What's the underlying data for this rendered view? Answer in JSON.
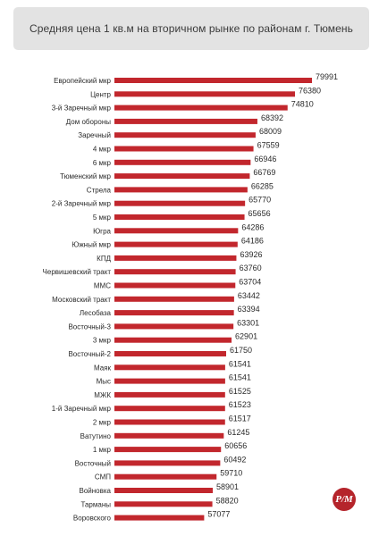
{
  "chart_data": {
    "type": "bar",
    "orientation": "horizontal",
    "title": "Средняя цена 1 кв.м на вторичном рынке по районам г. Тюмень",
    "bar_color": "#c2272d",
    "categories": [
      "Европейский мкр",
      "Центр",
      "3-й Заречный мкр",
      "Дом обороны",
      "Заречный",
      "4 мкр",
      "6 мкр",
      "Тюменский мкр",
      "Стрела",
      "2-й Заречный мкр",
      "5 мкр",
      "Югра",
      "Южный мкр",
      "КПД",
      "Червишевский тракт",
      "ММС",
      "Московский тракт",
      "Лесобаза",
      "Восточный-3",
      "3 мкр",
      "Восточный-2",
      "Маяк",
      "Мыс",
      "МЖК",
      "1-й Заречный мкр",
      "2 мкр",
      "Ватутино",
      "1 мкр",
      "Восточный",
      "СМП",
      "Войновка",
      "Тарманы",
      "Воровского"
    ],
    "values": [
      79991,
      76380,
      74810,
      68392,
      68009,
      67559,
      66946,
      66769,
      66285,
      65770,
      65656,
      64286,
      64186,
      63926,
      63760,
      63704,
      63442,
      63394,
      63301,
      62901,
      61750,
      61541,
      61541,
      61525,
      61523,
      61517,
      61245,
      60656,
      60492,
      59710,
      58901,
      58820,
      57077
    ]
  },
  "logo": {
    "text": "Р/М"
  }
}
